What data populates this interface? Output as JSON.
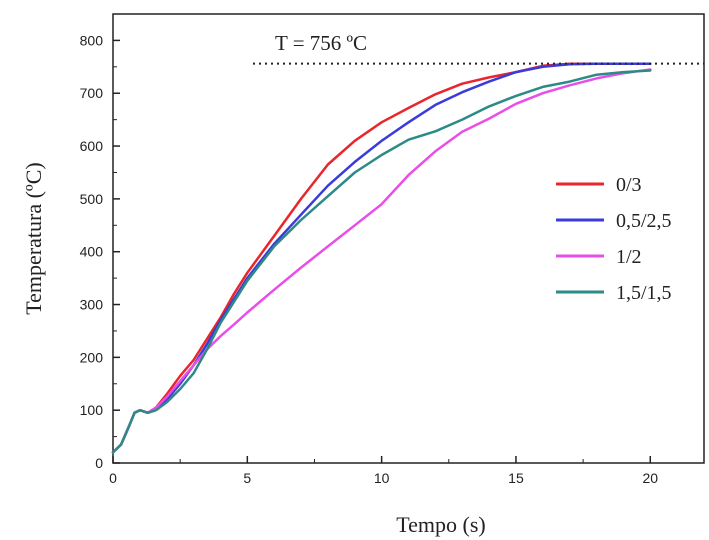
{
  "chart_data": {
    "type": "line",
    "xlabel": "Tempo (s)",
    "ylabel": "Temperatura (ºC)",
    "xlim": [
      0,
      22
    ],
    "ylim": [
      0,
      850
    ],
    "xticks": [
      0,
      5,
      10,
      15,
      20
    ],
    "yticks": [
      0,
      100,
      200,
      300,
      400,
      500,
      600,
      700,
      800
    ],
    "grid": false,
    "legend_position": "right",
    "annotation": {
      "text": "T = 756 ºC",
      "y": 756,
      "line_style": "dotted"
    },
    "series": [
      {
        "name": "0/3",
        "color": "#e8262b",
        "x": [
          0,
          0.3,
          0.6,
          0.8,
          1,
          1.3,
          1.6,
          2,
          2.5,
          3,
          3.5,
          4,
          4.5,
          5,
          6,
          7,
          8,
          9,
          10,
          11,
          12,
          13,
          14,
          15,
          16,
          17,
          18,
          19,
          20
        ],
        "y": [
          20,
          35,
          70,
          95,
          100,
          95,
          105,
          130,
          165,
          195,
          235,
          275,
          320,
          360,
          430,
          500,
          565,
          610,
          645,
          672,
          698,
          718,
          730,
          740,
          752,
          756,
          756,
          756,
          756
        ]
      },
      {
        "name": "0,5/2,5",
        "color": "#3b3bdc",
        "x": [
          0,
          0.3,
          0.6,
          0.8,
          1,
          1.3,
          1.6,
          2,
          2.5,
          3,
          3.5,
          4,
          4.5,
          5,
          6,
          7,
          8,
          9,
          10,
          11,
          12,
          13,
          14,
          15,
          16,
          17,
          18,
          19,
          20
        ],
        "y": [
          20,
          35,
          70,
          95,
          100,
          95,
          102,
          120,
          150,
          185,
          225,
          270,
          310,
          350,
          415,
          470,
          525,
          570,
          610,
          645,
          678,
          702,
          722,
          740,
          750,
          755,
          756,
          756,
          756
        ]
      },
      {
        "name": "1/2",
        "color": "#e84ee8",
        "x": [
          0,
          0.3,
          0.6,
          0.8,
          1,
          1.3,
          1.6,
          2,
          2.5,
          3,
          3.5,
          4,
          4.5,
          5,
          6,
          7,
          8,
          9,
          10,
          11,
          12,
          13,
          14,
          15,
          16,
          17,
          18,
          19,
          20
        ],
        "y": [
          20,
          35,
          70,
          95,
          100,
          95,
          105,
          125,
          155,
          185,
          215,
          240,
          262,
          285,
          328,
          370,
          410,
          450,
          490,
          545,
          590,
          627,
          652,
          680,
          700,
          715,
          728,
          738,
          745
        ]
      },
      {
        "name": "1,5/1,5",
        "color": "#2e8a86",
        "x": [
          0,
          0.3,
          0.6,
          0.8,
          1,
          1.3,
          1.6,
          2,
          2.5,
          3,
          3.5,
          4,
          4.5,
          5,
          6,
          7,
          8,
          9,
          10,
          11,
          12,
          13,
          14,
          15,
          16,
          17,
          18,
          19,
          20
        ],
        "y": [
          20,
          35,
          70,
          95,
          100,
          95,
          100,
          115,
          140,
          170,
          215,
          265,
          305,
          345,
          410,
          460,
          505,
          550,
          583,
          612,
          628,
          650,
          675,
          695,
          712,
          722,
          735,
          740,
          743
        ]
      }
    ]
  }
}
